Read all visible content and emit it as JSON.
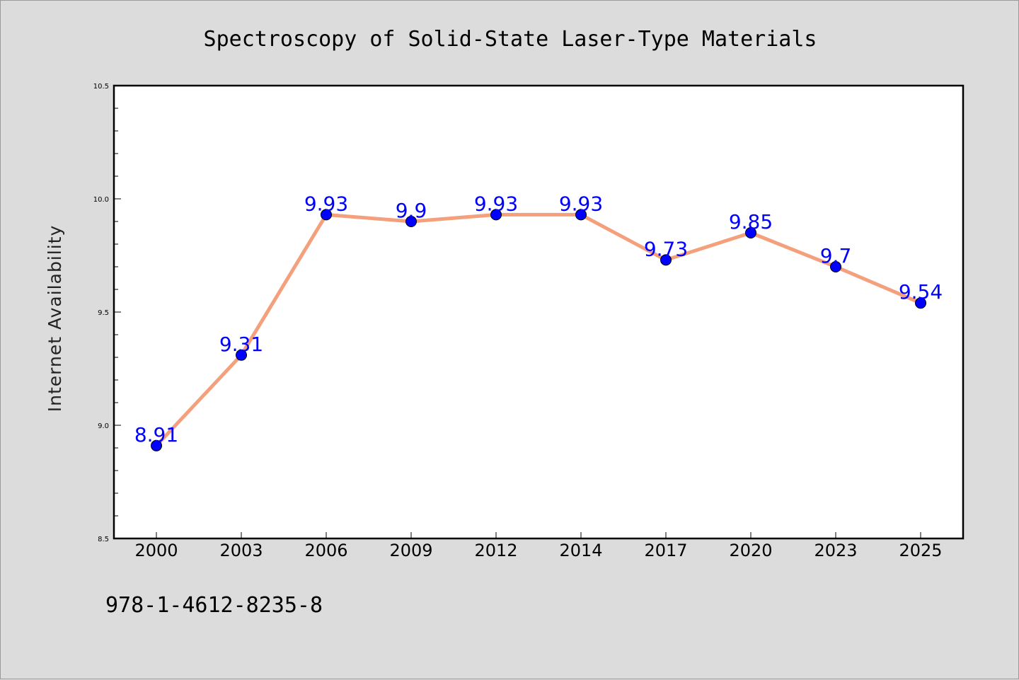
{
  "colors": {
    "background": "#dcdcdc",
    "plot_background": "#ffffff",
    "line": "#f4a07c",
    "marker": "#0000ff",
    "data_label": "#0000ff"
  },
  "footer_text": "978-1-4612-8235-8",
  "chart_data": {
    "type": "line",
    "title": "Spectroscopy of Solid-State Laser-Type Materials",
    "xlabel": "",
    "ylabel": "Internet Availability",
    "categories": [
      "2000",
      "2003",
      "2006",
      "2009",
      "2012",
      "2014",
      "2017",
      "2020",
      "2023",
      "2025"
    ],
    "series": [
      {
        "values": [
          8.91,
          9.31,
          9.93,
          9.9,
          9.93,
          9.93,
          9.73,
          9.85,
          9.7,
          9.54
        ],
        "labels": [
          "8.91",
          "9.31",
          "9.93",
          "9.9",
          "9.93",
          "9.93",
          "9.73",
          "9.85",
          "9.7",
          "9.54"
        ]
      }
    ],
    "ylim": [
      8.5,
      10.5
    ],
    "yticks": [
      "8.5",
      "9.0",
      "9.5",
      "10.0",
      "10.5"
    ],
    "grid": false,
    "legend": "none"
  }
}
